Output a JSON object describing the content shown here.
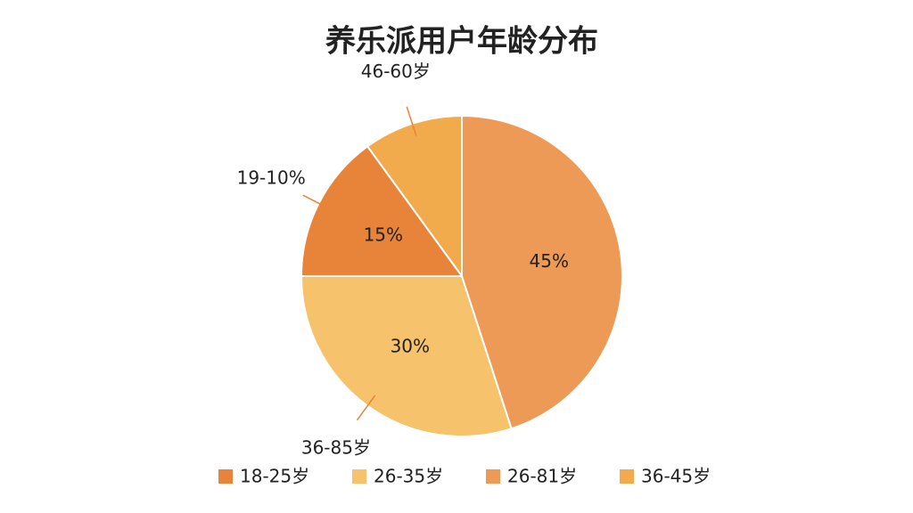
{
  "chart_data": {
    "type": "pie",
    "title": "养乐派用户年龄分布",
    "categories": [
      "18-25岁",
      "26-35岁",
      "26-81岁",
      "36-45岁"
    ],
    "values": [
      15,
      30,
      45,
      10
    ],
    "value_labels": [
      "15%",
      "30%",
      "45%",
      null
    ],
    "outer_labels": [
      "19-10%",
      "36-85岁",
      null,
      "46-60岁"
    ],
    "colors": [
      "#e8843a",
      "#f6c26c",
      "#ec9a55",
      "#f2ab4c"
    ]
  }
}
